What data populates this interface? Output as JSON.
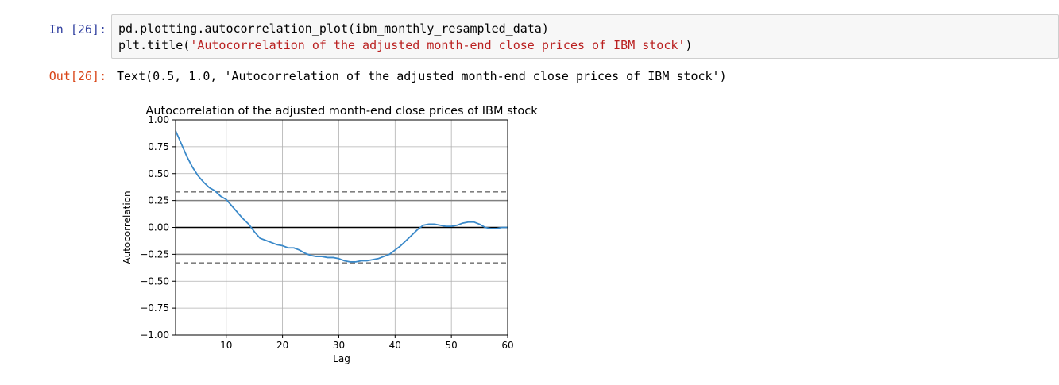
{
  "input_cell": {
    "prompt": "In [26]:",
    "line1": "pd.plotting.autocorrelation_plot(ibm_monthly_resampled_data)",
    "line2_prefix": "plt.title(",
    "line2_string": "'Autocorrelation of the adjusted month-end close prices of IBM stock'",
    "line2_suffix": ")"
  },
  "output_cell": {
    "prompt": "Out[26]:",
    "text": "Text(0.5, 1.0, 'Autocorrelation of the adjusted month-end close prices of IBM stock')"
  },
  "colors": {
    "in_prompt": "#303F9F",
    "out_prompt": "#D84315",
    "string": "#BA2121",
    "series": "#3a89c9",
    "band": "#808080"
  },
  "chart_data": {
    "type": "line",
    "title": "Autocorrelation of the adjusted month-end close prices of IBM stock",
    "xlabel": "Lag",
    "ylabel": "Autocorrelation",
    "xlim": [
      1,
      60
    ],
    "ylim": [
      -1.0,
      1.0
    ],
    "xticks": [
      10,
      20,
      30,
      40,
      50,
      60
    ],
    "yticks": [
      1.0,
      0.75,
      0.5,
      0.25,
      0.0,
      -0.25,
      -0.5,
      -0.75,
      -1.0
    ],
    "ytick_labels": [
      "1.00",
      "0.75",
      "0.50",
      "0.25",
      "0.00",
      "−0.25",
      "−0.50",
      "−0.75",
      "−1.00"
    ],
    "grid": true,
    "reference_lines": {
      "zero": 0.0,
      "solid_band": [
        0.25,
        -0.25
      ],
      "dashed_band": [
        0.33,
        -0.33
      ]
    },
    "series": [
      {
        "x": [
          1,
          2,
          3,
          4,
          5,
          6,
          7,
          8,
          9,
          10,
          11,
          12,
          13,
          14,
          15,
          16,
          17,
          18,
          19,
          20,
          21,
          22,
          23,
          24,
          25,
          26,
          27,
          28,
          29,
          30,
          31,
          32,
          33,
          34,
          35,
          36,
          37,
          38,
          39,
          40,
          41,
          42,
          43,
          44,
          45,
          46,
          47,
          48,
          49,
          50,
          51,
          52,
          53,
          54,
          55,
          56,
          57,
          58,
          59,
          60
        ],
        "values": [
          0.9,
          0.78,
          0.66,
          0.56,
          0.48,
          0.42,
          0.37,
          0.34,
          0.29,
          0.26,
          0.2,
          0.14,
          0.08,
          0.03,
          -0.04,
          -0.1,
          -0.12,
          -0.14,
          -0.16,
          -0.17,
          -0.19,
          -0.19,
          -0.21,
          -0.24,
          -0.26,
          -0.27,
          -0.27,
          -0.28,
          -0.28,
          -0.29,
          -0.31,
          -0.32,
          -0.32,
          -0.31,
          -0.31,
          -0.3,
          -0.29,
          -0.27,
          -0.25,
          -0.21,
          -0.17,
          -0.12,
          -0.07,
          -0.02,
          0.02,
          0.03,
          0.03,
          0.02,
          0.01,
          0.01,
          0.02,
          0.04,
          0.05,
          0.05,
          0.03,
          0.0,
          -0.01,
          -0.01,
          0.0,
          0.0
        ]
      }
    ]
  }
}
